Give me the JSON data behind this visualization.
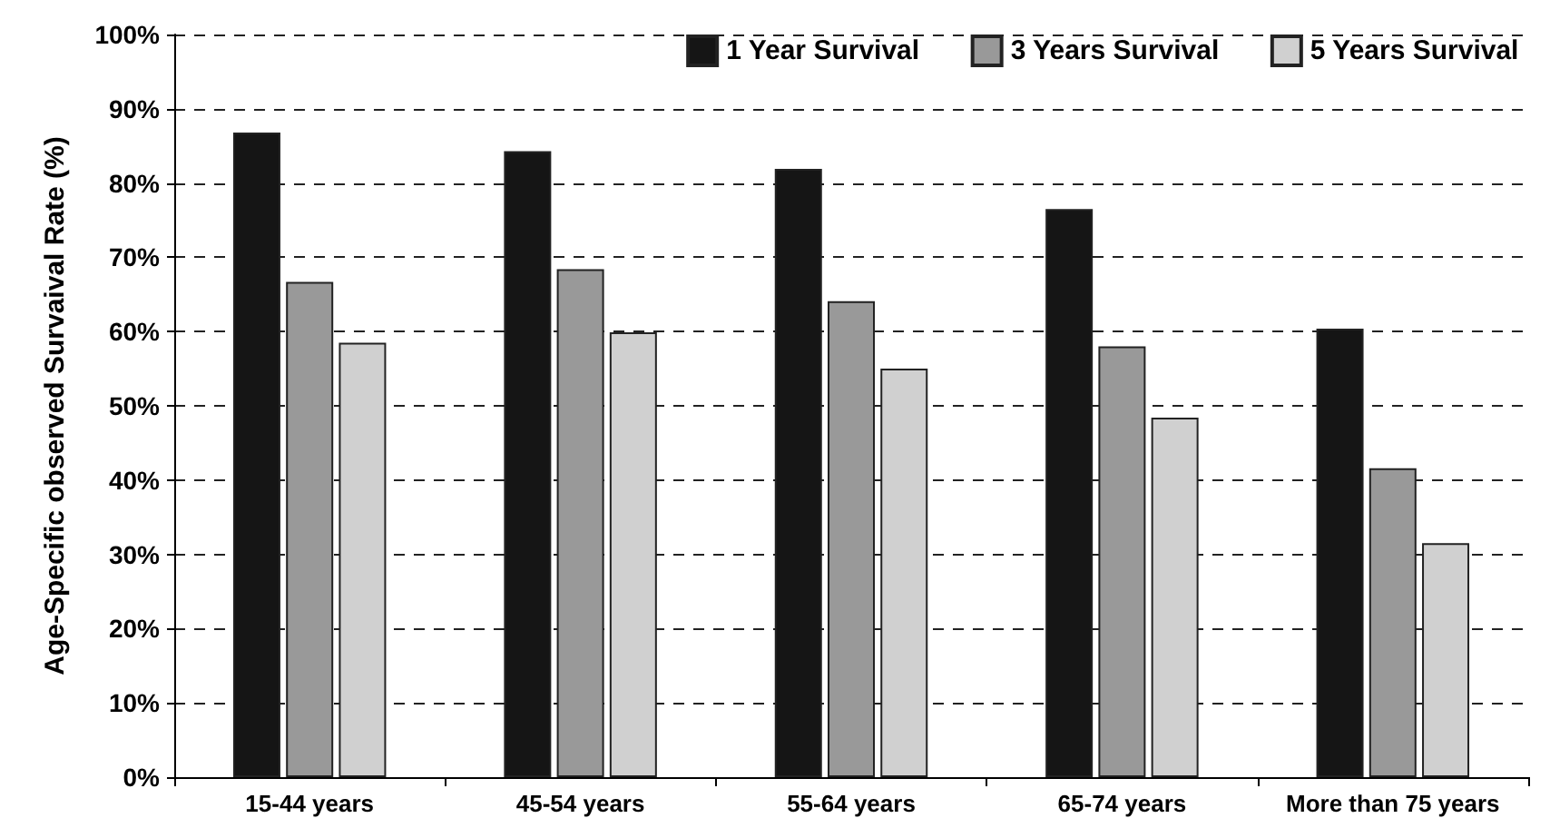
{
  "chart_data": {
    "type": "bar",
    "ylabel": "Age-Specific observed Survaival Rate (%)",
    "categories": [
      "15-44 years",
      "45-54 years",
      "55-64 years",
      "65-74 years",
      "More than 75 years"
    ],
    "series": [
      {
        "name": "1 Year Survival",
        "color": "#151515",
        "values": [
          86.8,
          84.3,
          81.9,
          76.5,
          60.4
        ]
      },
      {
        "name": "3 Years Survival",
        "color": "#999999",
        "values": [
          66.7,
          68.4,
          64.1,
          58.0,
          41.6
        ]
      },
      {
        "name": "5 Years Survival",
        "color": "#d0d0d0",
        "values": [
          58.5,
          59.9,
          55.0,
          48.4,
          31.5
        ]
      }
    ],
    "ylim": [
      0,
      100
    ],
    "yticks": [
      {
        "value": 0,
        "label": "0%"
      },
      {
        "value": 10,
        "label": "10%"
      },
      {
        "value": 20,
        "label": "20%"
      },
      {
        "value": 30,
        "label": "30%"
      },
      {
        "value": 40,
        "label": "40%"
      },
      {
        "value": 50,
        "label": "50%"
      },
      {
        "value": 60,
        "label": "60%"
      },
      {
        "value": 70,
        "label": "70%"
      },
      {
        "value": 80,
        "label": "80%"
      },
      {
        "value": 90,
        "label": "90%"
      },
      {
        "value": 100,
        "label": "100%"
      }
    ],
    "grid": "y",
    "legend": "top right"
  }
}
